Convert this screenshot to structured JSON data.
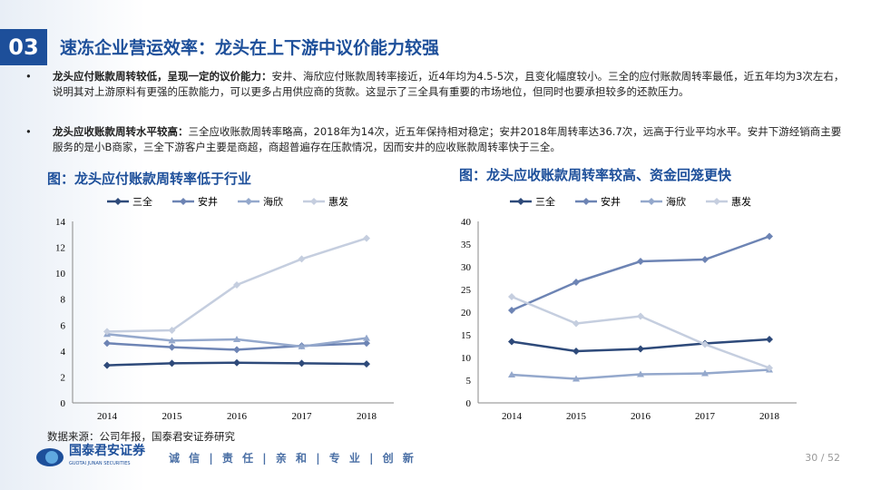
{
  "section_number": "03",
  "title": "速冻企业营运效率：龙头在上下游中议价能力较强",
  "bullets": [
    {
      "bold": "龙头应付账款周转较低，呈现一定的议价能力：",
      "text": "安井、海欣应付账款周转率接近，近4年均为4.5-5次，且变化幅度较小。三全的应付账款周转率最低，近五年均为3次左右，说明其对上游原料有更强的压款能力，可以更多占用供应商的货款。这显示了三全具有重要的市场地位，但同时也要承担较多的还款压力。"
    },
    {
      "bold": "龙头应收账款周转水平较高：",
      "text": "三全应收账款周转率略高，2018年为14次，近五年保持相对稳定；安井2018年周转率达36.7次，远高于行业平均水平。安井下游经销商主要服务的是小B商家，三全下游客户主要是商超，商超普遍存在压款情况，因而安井的应收账款周转率快于三全。"
    }
  ],
  "bullet_mark": "•",
  "source": "数据来源：公司年报，国泰君安证券研究",
  "logo": {
    "name": "国泰君安证券",
    "en": "GUOTAI JUNAN SECURITIES"
  },
  "motto": "诚 信 | 责 任 | 亲 和 | 专 业 | 创 新",
  "page": "30 / 52",
  "colors": {
    "title": "#1d4f9a",
    "三全": "#2e4a7a",
    "安井": "#6d84b4",
    "海欣": "#94a8cc",
    "惠发": "#c5cedf"
  },
  "chart_data": [
    {
      "type": "line",
      "title": "图：龙头应付账款周转率低于行业",
      "categories": [
        "2014",
        "2015",
        "2016",
        "2017",
        "2018"
      ],
      "ylim": [
        0,
        14
      ],
      "yticks": [
        0,
        2,
        4,
        6,
        8,
        10,
        12,
        14
      ],
      "legend": "top",
      "series": [
        {
          "name": "三全",
          "values": [
            2.9,
            3.05,
            3.1,
            3.05,
            3.0
          ]
        },
        {
          "name": "安井",
          "values": [
            4.6,
            4.3,
            4.1,
            4.4,
            4.6
          ]
        },
        {
          "name": "海欣",
          "values": [
            5.3,
            4.8,
            4.9,
            4.35,
            5.0
          ]
        },
        {
          "name": "惠发",
          "values": [
            5.5,
            5.6,
            9.1,
            11.1,
            12.7
          ]
        }
      ]
    },
    {
      "type": "line",
      "title": "图：龙头应收账款周转率较高、资金回笼更快",
      "categories": [
        "2014",
        "2015",
        "2016",
        "2017",
        "2018"
      ],
      "ylim": [
        0,
        40
      ],
      "yticks": [
        0,
        5,
        10,
        15,
        20,
        25,
        30,
        35,
        40
      ],
      "legend": "top",
      "series": [
        {
          "name": "三全",
          "values": [
            13.5,
            11.4,
            11.9,
            13.1,
            14.0
          ]
        },
        {
          "name": "安井",
          "values": [
            20.4,
            26.6,
            31.2,
            31.6,
            36.7
          ]
        },
        {
          "name": "海欣",
          "values": [
            6.2,
            5.3,
            6.3,
            6.5,
            7.3
          ]
        },
        {
          "name": "惠发",
          "values": [
            23.4,
            17.5,
            19.1,
            12.9,
            7.7
          ]
        }
      ]
    }
  ]
}
